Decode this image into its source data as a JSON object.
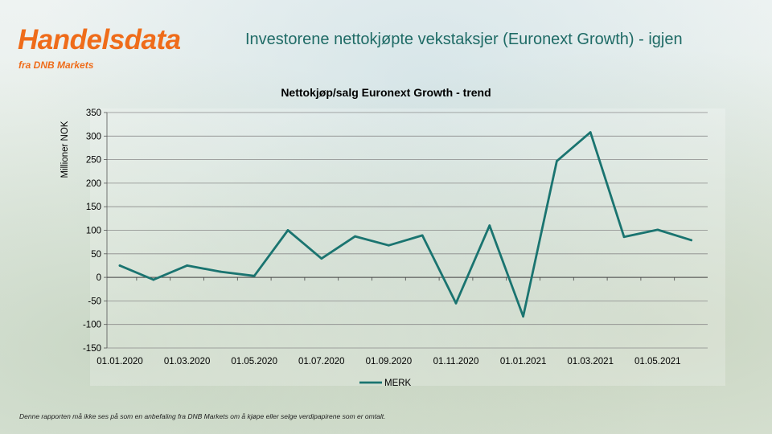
{
  "brand": {
    "title": "Handelsdata",
    "subtitle": "fra DNB Markets",
    "color": "#ef6c1a"
  },
  "headline": "Investorene nettokjøpte vekstaksjer (Euronext Growth) - igjen",
  "footer": "Denne rapporten må ikke ses på som en anbefaling fra DNB Markets om å kjøpe eller selge verdipapirene som er omtalt.",
  "chart_data": {
    "type": "line",
    "title": "Nettokjøp/salg Euronext Growth - trend",
    "xlabel": "",
    "ylabel": "Millioner NOK",
    "ylim": [
      -150,
      350
    ],
    "yticks": [
      -150,
      -100,
      -50,
      0,
      50,
      100,
      150,
      200,
      250,
      300,
      350
    ],
    "xtick_labels": [
      "01.01.2020",
      "01.03.2020",
      "01.05.2020",
      "01.07.2020",
      "01.09.2020",
      "01.11.2020",
      "01.01.2021",
      "01.03.2021",
      "01.05.2021"
    ],
    "grid": true,
    "legend_position": "bottom",
    "series": [
      {
        "name": "MERK",
        "color": "#1a7470",
        "x": [
          "2020-01",
          "2020-02",
          "2020-03",
          "2020-04",
          "2020-05",
          "2020-06",
          "2020-07",
          "2020-08",
          "2020-09",
          "2020-10",
          "2020-11",
          "2020-12",
          "2021-01",
          "2021-02",
          "2021-03",
          "2021-04",
          "2021-05",
          "2021-06"
        ],
        "values": [
          25,
          -5,
          25,
          12,
          3,
          100,
          40,
          87,
          68,
          89,
          -55,
          110,
          -83,
          247,
          308,
          86,
          101,
          79
        ]
      }
    ]
  }
}
